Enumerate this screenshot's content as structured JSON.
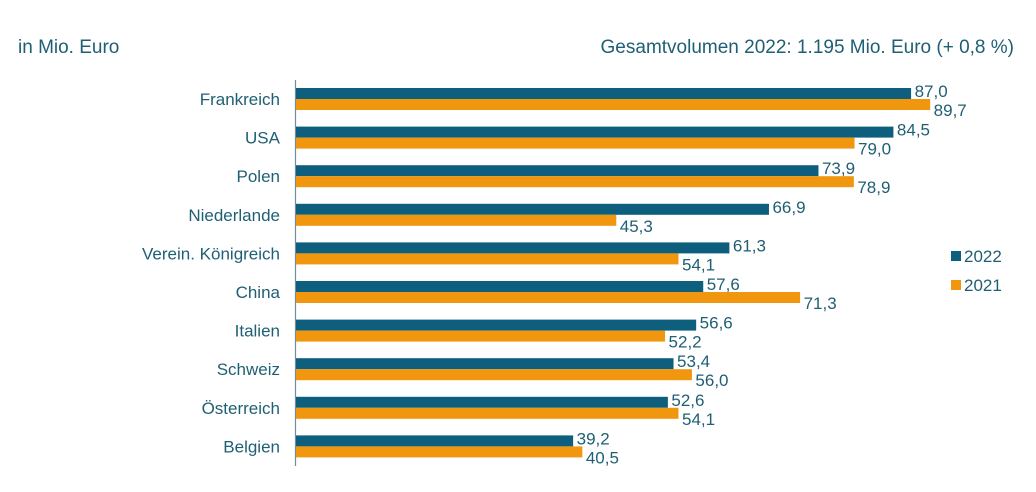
{
  "chart_data": {
    "type": "bar",
    "orientation": "horizontal",
    "unit_label": "in Mio. Euro",
    "subtitle": "Gesamtvolumen 2022: 1.195 Mio. Euro (+ 0,8 %)",
    "categories": [
      "Frankreich",
      "USA",
      "Polen",
      "Niederlande",
      "Verein. Königreich",
      "China",
      "Italien",
      "Schweiz",
      "Österreich",
      "Belgien"
    ],
    "series": [
      {
        "name": "2022",
        "color": "#0e5f7e",
        "values": [
          87.0,
          84.5,
          73.9,
          66.9,
          61.3,
          57.6,
          56.6,
          53.4,
          52.6,
          39.2
        ],
        "labels": [
          "87,0",
          "84,5",
          "73,9",
          "66,9",
          "61,3",
          "57,6",
          "56,6",
          "53,4",
          "52,6",
          "39,2"
        ]
      },
      {
        "name": "2021",
        "color": "#f0960f",
        "values": [
          89.7,
          79.0,
          78.9,
          45.3,
          54.1,
          71.3,
          52.2,
          56.0,
          54.1,
          40.5
        ],
        "labels": [
          "89,7",
          "79,0",
          "78,9",
          "45,3",
          "54,1",
          "71,3",
          "52,2",
          "56,0",
          "54,1",
          "40,5"
        ]
      }
    ],
    "legend_position": "right",
    "grid": false,
    "xlim": [
      0,
      100
    ]
  }
}
